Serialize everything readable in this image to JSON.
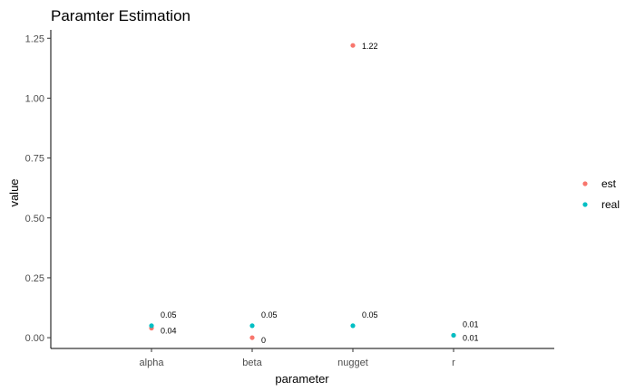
{
  "chart_data": {
    "type": "scatter",
    "title": "Paramter Estimation",
    "xlabel": "parameter",
    "ylabel": "value",
    "categories": [
      "alpha",
      "beta",
      "nugget",
      "r"
    ],
    "y_ticks": [
      "0.00",
      "0.25",
      "0.50",
      "0.75",
      "1.00",
      "1.25"
    ],
    "y_tick_values": [
      0,
      0.25,
      0.5,
      0.75,
      1.0,
      1.25
    ],
    "ylim": [
      -0.045,
      1.285
    ],
    "grid": false,
    "legend_position": "right",
    "series": [
      {
        "name": "est",
        "color": "#F8766D",
        "values": [
          0.04,
          0,
          1.22,
          0.01
        ],
        "labels": [
          "0.04",
          "0",
          "1.22",
          "0.01"
        ]
      },
      {
        "name": "real",
        "color": "#00BFC4",
        "values": [
          0.05,
          0.05,
          0.05,
          0.01
        ],
        "labels": [
          "0.05",
          "0.05",
          "0.05",
          "0.01"
        ]
      }
    ]
  }
}
